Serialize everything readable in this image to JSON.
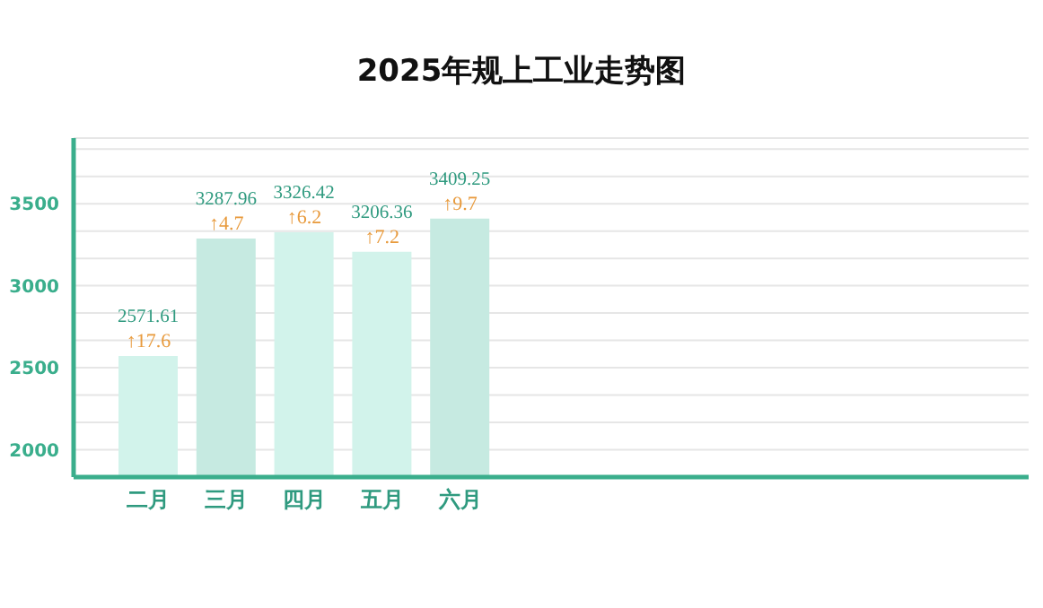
{
  "chart_data": {
    "type": "bar",
    "title": "2025年规上工业走势图",
    "categories": [
      "二月",
      "三月",
      "四月",
      "五月",
      "六月"
    ],
    "values": [
      2571.61,
      3287.96,
      3326.42,
      3206.36,
      3409.25
    ],
    "colors": [
      "#d2f3eb",
      "#c6eae1",
      "#d2f3eb",
      "#d2f3eb",
      "#c6eae1"
    ],
    "data_labels": true,
    "annotations": [
      {
        "text": "↑17.6",
        "x": "二月",
        "y": 2571.61
      },
      {
        "text": "↑4.7",
        "x": "三月",
        "y": 3287.96
      },
      {
        "text": "↑6.2",
        "x": "四月",
        "y": 3326.42
      },
      {
        "text": "↑7.2",
        "x": "五月",
        "y": 3206.36
      },
      {
        "text": "↑9.7",
        "x": "六月",
        "y": 3409.25
      }
    ],
    "ylim": [
      1833.33,
      3900
    ],
    "yticks": [
      2000,
      {
        "value": 2166.67,
        "label": null
      },
      {
        "value": 2333.33,
        "label": null
      },
      2500,
      {
        "value": 2666.67,
        "label": null
      },
      {
        "value": 2833.33,
        "label": null
      },
      3000,
      {
        "value": 3166.67,
        "label": null
      },
      {
        "value": 3333.33,
        "label": null
      },
      3500,
      {
        "value": 3666.67,
        "label": null
      },
      {
        "value": 3833.33,
        "label": null
      }
    ],
    "grid": "y"
  }
}
